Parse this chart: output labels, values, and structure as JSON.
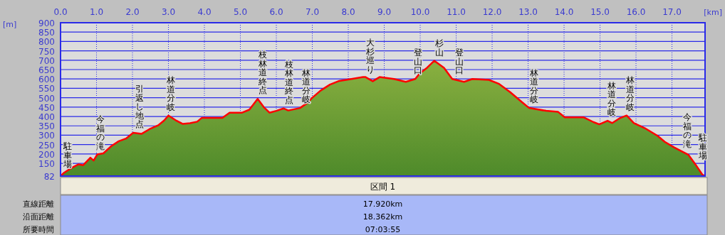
{
  "chart_data": {
    "type": "area",
    "xlabel": "[km]",
    "ylabel": "[m]",
    "xlim": [
      0,
      17.92
    ],
    "ylim": [
      82,
      900
    ],
    "xticks": [
      {
        "value": 0,
        "label": "0.0"
      },
      {
        "value": 1,
        "label": "1.0"
      },
      {
        "value": 2,
        "label": "2.0"
      },
      {
        "value": 3,
        "label": "3.0"
      },
      {
        "value": 4,
        "label": "4.0"
      },
      {
        "value": 5,
        "label": "5.0"
      },
      {
        "value": 6,
        "label": "6.0"
      },
      {
        "value": 7,
        "label": "7.0"
      },
      {
        "value": 8,
        "label": "8.0"
      },
      {
        "value": 9,
        "label": "9.0"
      },
      {
        "value": 10,
        "label": "10.0"
      },
      {
        "value": 11,
        "label": "11.0"
      },
      {
        "value": 12,
        "label": "12.0"
      },
      {
        "value": 13,
        "label": "13.0"
      },
      {
        "value": 14,
        "label": "14.0"
      },
      {
        "value": 15,
        "label": "15.0"
      },
      {
        "value": 16,
        "label": "16.0"
      },
      {
        "value": 17,
        "label": "17.0"
      }
    ],
    "yticks": [
      82,
      150,
      200,
      250,
      300,
      350,
      400,
      450,
      500,
      550,
      600,
      650,
      700,
      750,
      800,
      850,
      900
    ],
    "grid": true,
    "series": [
      {
        "color": "#ff0000",
        "x": [
          0,
          0.1,
          0.3,
          0.5,
          0.63,
          0.83,
          0.92,
          1.02,
          1.19,
          1.42,
          1.62,
          1.82,
          2.02,
          2.25,
          2.48,
          2.71,
          2.88,
          3.0,
          3.2,
          3.4,
          3.6,
          3.8,
          3.93,
          4.5,
          4.7,
          5.05,
          5.25,
          5.48,
          5.65,
          5.81,
          6.0,
          6.2,
          6.33,
          6.66,
          6.83,
          7.0,
          7.23,
          7.49,
          7.75,
          8.0,
          8.41,
          8.48,
          8.68,
          8.87,
          9.27,
          9.6,
          9.86,
          9.99,
          10.19,
          10.39,
          10.66,
          10.89,
          11.22,
          11.45,
          11.91,
          12.18,
          12.5,
          12.84,
          13.03,
          13.5,
          13.83,
          14.02,
          14.55,
          14.82,
          14.98,
          15.21,
          15.34,
          15.54,
          15.74,
          15.94,
          16.27,
          16.6,
          16.8,
          17.06,
          17.46,
          17.65,
          17.85,
          17.92
        ],
        "values": [
          82,
          100,
          125,
          145,
          140,
          180,
          165,
          197,
          203,
          243,
          268,
          282,
          313,
          307,
          333,
          352,
          378,
          405,
          380,
          360,
          364,
          372,
          393,
          393,
          420,
          420,
          436,
          494,
          450,
          420,
          430,
          443,
          432,
          445,
          468,
          500,
          538,
          570,
          590,
          597,
          610,
          610,
          588,
          610,
          600,
          585,
          600,
          630,
          660,
          697,
          660,
          600,
          585,
          600,
          595,
          575,
          530,
          475,
          445,
          430,
          425,
          395,
          395,
          370,
          358,
          377,
          365,
          390,
          405,
          365,
          335,
          297,
          265,
          235,
          195,
          145,
          88,
          84
        ]
      }
    ],
    "annotations": [
      {
        "text": "駐車場",
        "x": 0.1,
        "y": 100
      },
      {
        "text": "今福の滝",
        "x": 1.0,
        "y": 197
      },
      {
        "text": "引返し地点",
        "x": 2.1,
        "y": 313
      },
      {
        "text": "林道分岐",
        "x": 2.98,
        "y": 405
      },
      {
        "text": "枝林道終点",
        "x": 5.52,
        "y": 494
      },
      {
        "text": "枝林道終点",
        "x": 6.25,
        "y": 443
      },
      {
        "text": "林道分岐",
        "x": 6.74,
        "y": 445
      },
      {
        "text": "大杉巡り",
        "x": 8.52,
        "y": 605
      },
      {
        "text": "登山口",
        "x": 9.85,
        "y": 600
      },
      {
        "text": "杉山",
        "x": 10.43,
        "y": 697
      },
      {
        "text": "登山口",
        "x": 10.98,
        "y": 600
      },
      {
        "text": "林道分岐",
        "x": 13.06,
        "y": 445
      },
      {
        "text": "林道分岐",
        "x": 15.22,
        "y": 377
      },
      {
        "text": "林道分岐",
        "x": 15.75,
        "y": 405
      },
      {
        "text": "今福の滝",
        "x": 17.33,
        "y": 208
      },
      {
        "text": "駐車場",
        "x": 17.77,
        "y": 145
      },
      "区間 1",
      "直線距離",
      "17.920km",
      "沿面距離",
      "18.362km",
      "所要時間",
      "07:03:55"
    ]
  }
}
